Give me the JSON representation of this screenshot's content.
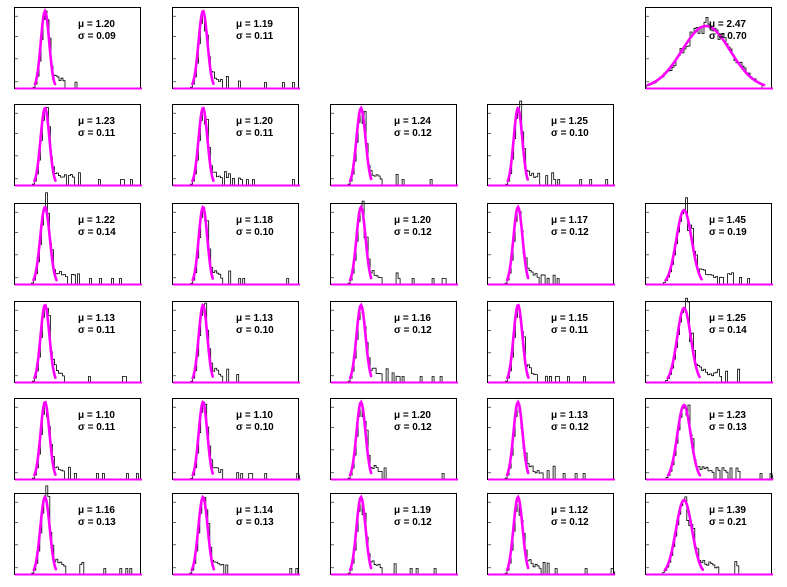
{
  "chart_data": {
    "type": "grid_of_histograms_with_gaussian_fit",
    "layout": {
      "rows": 6,
      "cols": 5
    },
    "colors": {
      "fit": "#ff00ff",
      "histogram": "#000000",
      "baseline": "#ff00ff"
    },
    "labels": {
      "mean_symbol": "μ",
      "sigma_symbol": "σ"
    },
    "panels": [
      {
        "row": 0,
        "col": 0,
        "mu": "1.20",
        "sigma": "0.09"
      },
      {
        "row": 0,
        "col": 1,
        "mu": "1.19",
        "sigma": "0.11"
      },
      {
        "row": 0,
        "col": 4,
        "mu": "2.47",
        "sigma": "0.70",
        "shape": "broad"
      },
      {
        "row": 1,
        "col": 0,
        "mu": "1.23",
        "sigma": "0.11"
      },
      {
        "row": 1,
        "col": 1,
        "mu": "1.20",
        "sigma": "0.11"
      },
      {
        "row": 1,
        "col": 2,
        "mu": "1.24",
        "sigma": "0.12"
      },
      {
        "row": 1,
        "col": 3,
        "mu": "1.25",
        "sigma": "0.10"
      },
      {
        "row": 2,
        "col": 0,
        "mu": "1.22",
        "sigma": "0.14"
      },
      {
        "row": 2,
        "col": 1,
        "mu": "1.18",
        "sigma": "0.10"
      },
      {
        "row": 2,
        "col": 2,
        "mu": "1.20",
        "sigma": "0.12"
      },
      {
        "row": 2,
        "col": 3,
        "mu": "1.17",
        "sigma": "0.12"
      },
      {
        "row": 2,
        "col": 4,
        "mu": "1.45",
        "sigma": "0.19",
        "shape": "wide"
      },
      {
        "row": 3,
        "col": 0,
        "mu": "1.13",
        "sigma": "0.11"
      },
      {
        "row": 3,
        "col": 1,
        "mu": "1.13",
        "sigma": "0.10"
      },
      {
        "row": 3,
        "col": 2,
        "mu": "1.16",
        "sigma": "0.12"
      },
      {
        "row": 3,
        "col": 3,
        "mu": "1.15",
        "sigma": "0.11"
      },
      {
        "row": 3,
        "col": 4,
        "mu": "1.25",
        "sigma": "0.14",
        "shape": "wide"
      },
      {
        "row": 4,
        "col": 0,
        "mu": "1.10",
        "sigma": "0.11"
      },
      {
        "row": 4,
        "col": 1,
        "mu": "1.10",
        "sigma": "0.10"
      },
      {
        "row": 4,
        "col": 2,
        "mu": "1.20",
        "sigma": "0.12"
      },
      {
        "row": 4,
        "col": 3,
        "mu": "1.13",
        "sigma": "0.12"
      },
      {
        "row": 4,
        "col": 4,
        "mu": "1.23",
        "sigma": "0.13",
        "shape": "wide"
      },
      {
        "row": 5,
        "col": 0,
        "mu": "1.16",
        "sigma": "0.13"
      },
      {
        "row": 5,
        "col": 1,
        "mu": "1.14",
        "sigma": "0.13"
      },
      {
        "row": 5,
        "col": 2,
        "mu": "1.19",
        "sigma": "0.12"
      },
      {
        "row": 5,
        "col": 3,
        "mu": "1.12",
        "sigma": "0.12"
      },
      {
        "row": 5,
        "col": 4,
        "mu": "1.39",
        "sigma": "0.21",
        "shape": "wide"
      }
    ]
  }
}
